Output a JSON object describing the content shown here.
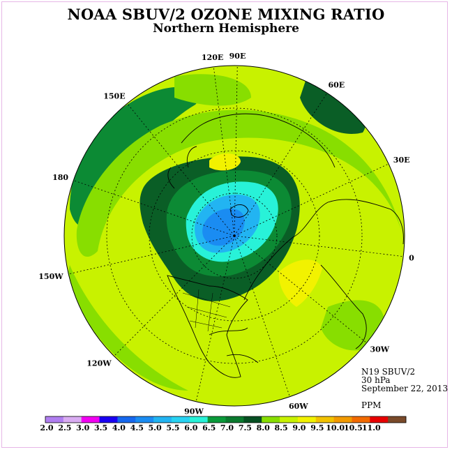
{
  "title": "NOAA SBUV/2 OZONE MIXING RATIO",
  "subtitle": "Northern Hemisphere",
  "info": {
    "satellite": "N19 SBUV/2",
    "level": "30 hPa",
    "date": "September 22, 2013",
    "units": "PPM"
  },
  "longitude_labels": [
    "90E",
    "60E",
    "30E",
    "0",
    "30W",
    "60W",
    "90W",
    "120W",
    "150W",
    "180",
    "150E",
    "120E"
  ],
  "colorbar": {
    "labels": [
      "2.0",
      "2.5",
      "3.0",
      "3.5",
      "4.0",
      "4.5",
      "5.0",
      "5.5",
      "6.0",
      "6.5",
      "7.0",
      "7.5",
      "8.0",
      "8.5",
      "9.0",
      "9.5",
      "10.0",
      "10.5",
      "11.0"
    ],
    "colors": [
      "#b07ef0",
      "#d9acf2",
      "#f200f2",
      "#1a00f2",
      "#1668ee",
      "#1a8cf2",
      "#22b4f2",
      "#28d2f2",
      "#28f2d8",
      "#0a9a3a",
      "#0a7a2e",
      "#064f22",
      "#88de00",
      "#c8f200",
      "#f2f200",
      "#f2c200",
      "#f29a00",
      "#f26a00",
      "#e80000",
      "#7a4a2a"
    ]
  },
  "map_colors": {
    "dark_green": "#0a5e26",
    "mid_green": "#0c8a34",
    "light_green": "#88de00",
    "yellow_green": "#c8f200",
    "yellow": "#f2f200",
    "cyan": "#28f2d8",
    "light_blue": "#22b4f2",
    "blue": "#1a8cf2"
  }
}
